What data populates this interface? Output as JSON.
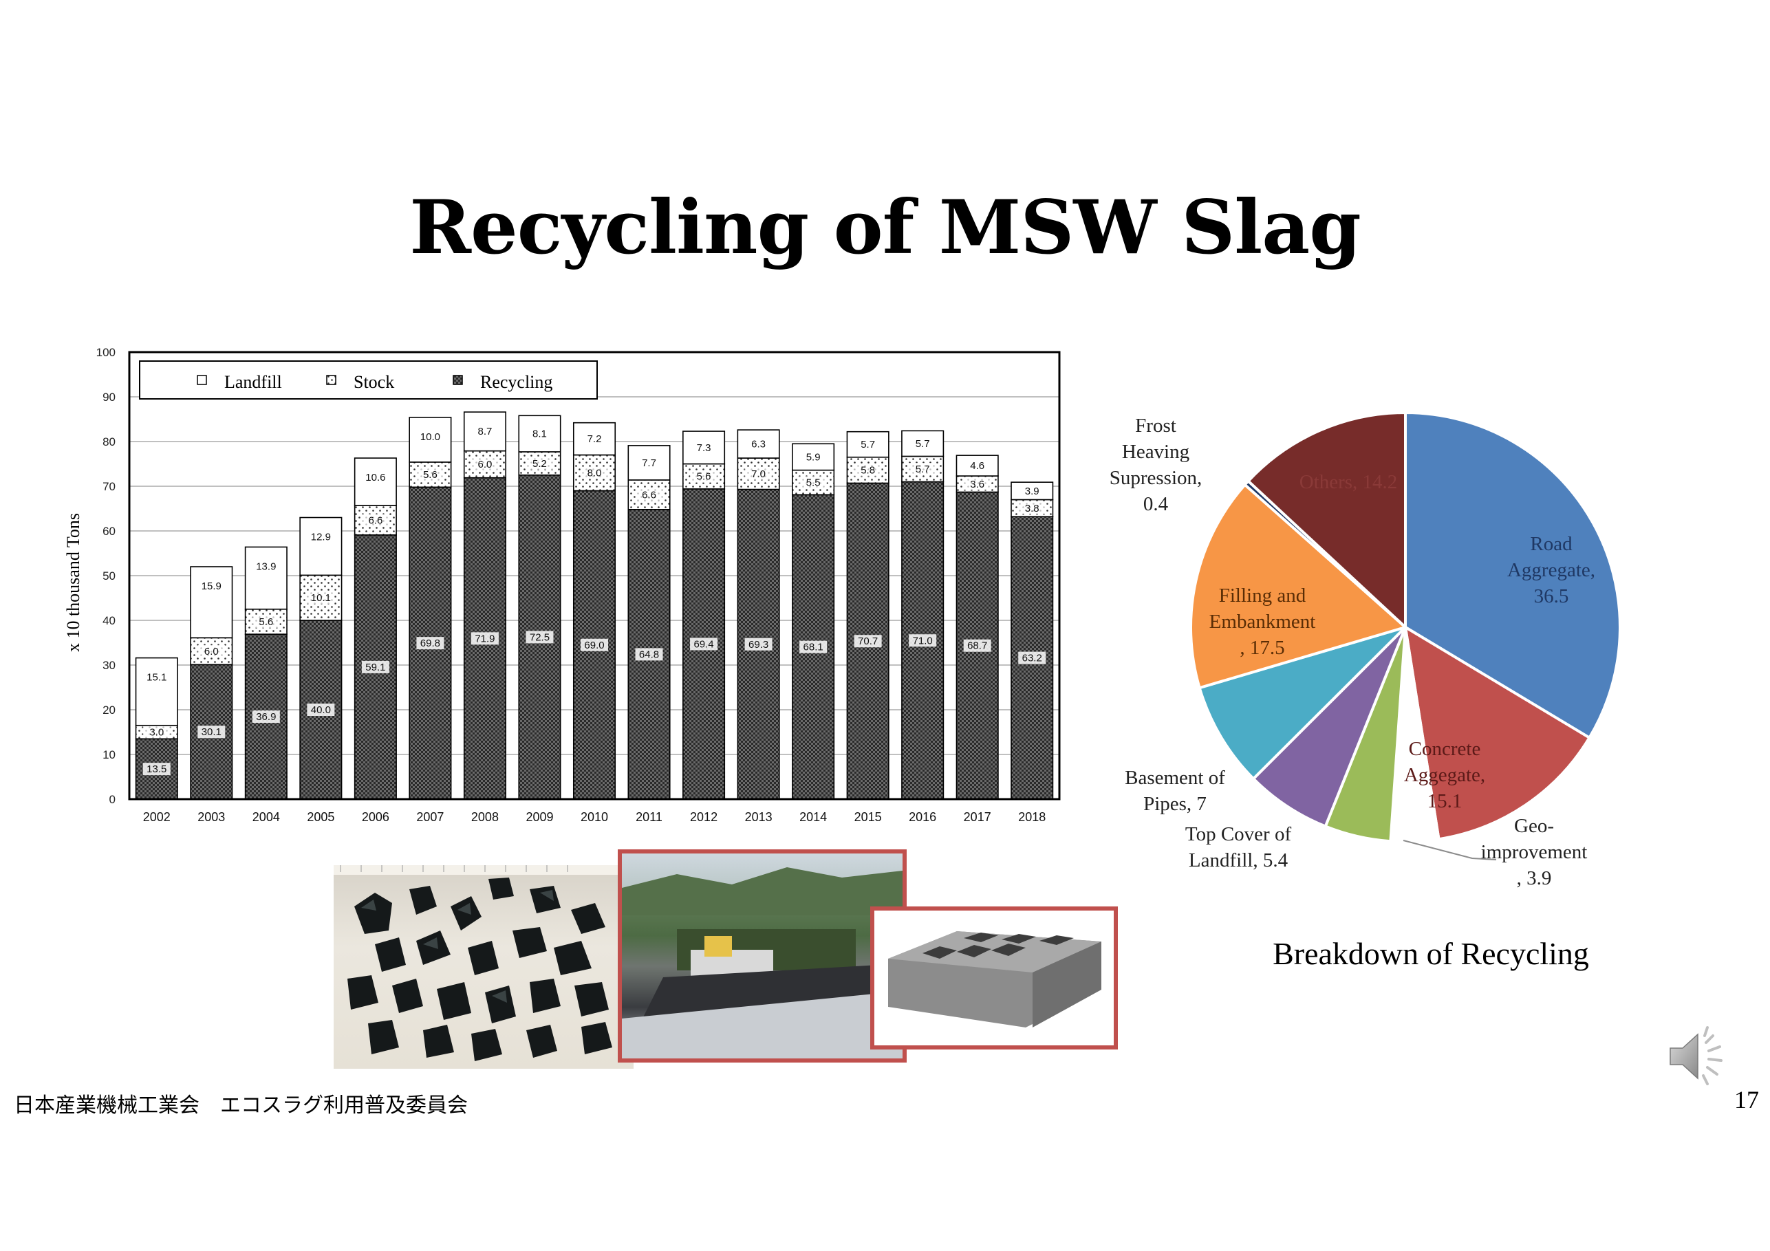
{
  "slide": {
    "title": "Recycling of MSW Slag",
    "footer": "日本産業機械工業会　エコスラグ利用普及委員会",
    "page_number": "17"
  },
  "icons": {
    "speaker": "speaker-icon"
  },
  "pie_caption": "Breakdown of Recycling",
  "chart_data": [
    {
      "type": "bar",
      "stacked": true,
      "categories": [
        "2002",
        "2003",
        "2004",
        "2005",
        "2006",
        "2007",
        "2008",
        "2009",
        "2010",
        "2011",
        "2012",
        "2013",
        "2014",
        "2015",
        "2016",
        "2017",
        "2018"
      ],
      "series": [
        {
          "name": "Recycling",
          "pattern": "dark-checker",
          "values": [
            13.5,
            30.1,
            36.9,
            40.0,
            59.1,
            69.8,
            71.9,
            72.5,
            69.0,
            64.8,
            69.4,
            69.3,
            68.1,
            70.7,
            71.0,
            68.7,
            63.2
          ]
        },
        {
          "name": "Stock",
          "pattern": "dotted",
          "values": [
            3.0,
            6.0,
            5.6,
            10.1,
            6.6,
            5.6,
            6.0,
            5.2,
            8.0,
            6.6,
            5.6,
            7.0,
            5.5,
            5.8,
            5.7,
            3.6,
            3.8
          ]
        },
        {
          "name": "Landfill",
          "pattern": "white",
          "values": [
            15.1,
            15.9,
            13.9,
            12.9,
            10.6,
            10.0,
            8.7,
            8.1,
            7.2,
            7.7,
            7.3,
            6.3,
            5.9,
            5.7,
            5.7,
            4.6,
            3.9
          ]
        }
      ],
      "value_labels": {
        "Recycling": [
          "13.5",
          "30.1",
          "36.9",
          "40.0",
          "59.1",
          "69.8",
          "71.9",
          "72.5",
          "69.0",
          "64.8",
          "69.4",
          "69.3",
          "68.1",
          "70.7",
          "71.0",
          "68.7",
          "63.2"
        ],
        "Stock": [
          "3.0",
          "6.0",
          "5.6",
          "10.1",
          "6.6",
          "5.6",
          "6.0",
          "5.2",
          "8.0",
          "6.6",
          "5.6",
          "7.0",
          "5.5",
          "5.8",
          "5.7",
          "3.6",
          "3.8"
        ],
        "Landfill": [
          "15.1",
          "15.9",
          "13.9",
          "12.9",
          "10.6",
          "10.0",
          "8.7",
          "8.1",
          "7.2",
          "7.7",
          "7.3",
          "6.3",
          "5.9",
          "5.7",
          "5.7",
          "4.6",
          "3.9"
        ]
      },
      "legend": [
        "Landfill",
        "Stock",
        "Recycling"
      ],
      "legend_position": "top-left",
      "ylabel": "x 10 thousand Tons",
      "xlabel": "",
      "ylim": [
        0,
        100
      ],
      "yticks": [
        0,
        10,
        20,
        30,
        40,
        50,
        60,
        70,
        80,
        90,
        100
      ],
      "grid": true
    },
    {
      "type": "pie",
      "slices": [
        {
          "label": "Road Aggregate, 36.5",
          "lines": [
            "Road",
            "Aggregate,",
            "36.5"
          ],
          "value": 36.5,
          "color": "#4f81bd",
          "label_color": "#1f3864"
        },
        {
          "label": "Concrete Aggegate, 15.1",
          "lines": [
            "Concrete",
            "Aggegate,",
            "15.1"
          ],
          "value": 15.1,
          "color": "#c0504d",
          "label_color": "#5c1a18"
        },
        {
          "label": "Geo-improvement, 3.9",
          "lines": [
            "Geo-",
            "improvement",
            ", 3.9"
          ],
          "value": 3.9,
          "color": "#ffffff",
          "label_color": "#222222"
        },
        {
          "label": "Top Cover of Landfill, 5.4",
          "lines": [
            "Top Cover of",
            "Landfill, 5.4"
          ],
          "value": 5.4,
          "color": "#9bbb59",
          "label_color": "#222222"
        },
        {
          "label": "Basement of Pipes, 7",
          "lines": [
            "Basement of",
            "Pipes, 7"
          ],
          "value": 7,
          "color": "#8064a2",
          "label_color": "#222222"
        },
        {
          "label": "",
          "lines": [],
          "value": 8.6,
          "color": "#4bacc6",
          "label_color": "#222222"
        },
        {
          "label": "Filling and Embankment, 17.5",
          "lines": [
            "Filling and",
            "Embankment",
            ", 17.5"
          ],
          "value": 17.5,
          "color": "#f79646",
          "label_color": "#5a2d05"
        },
        {
          "label": "Frost Heaving Supression, 0.4",
          "lines": [
            "Frost",
            "Heaving",
            "Supression,",
            "0.4"
          ],
          "value": 0.4,
          "color": "#1f3864",
          "label_color": "#222222"
        },
        {
          "label": "Others, 14.2",
          "lines": [
            "Others, 14.2"
          ],
          "value": 14.2,
          "color": "#772c2a",
          "label_color": "#8a3a38"
        }
      ]
    }
  ]
}
